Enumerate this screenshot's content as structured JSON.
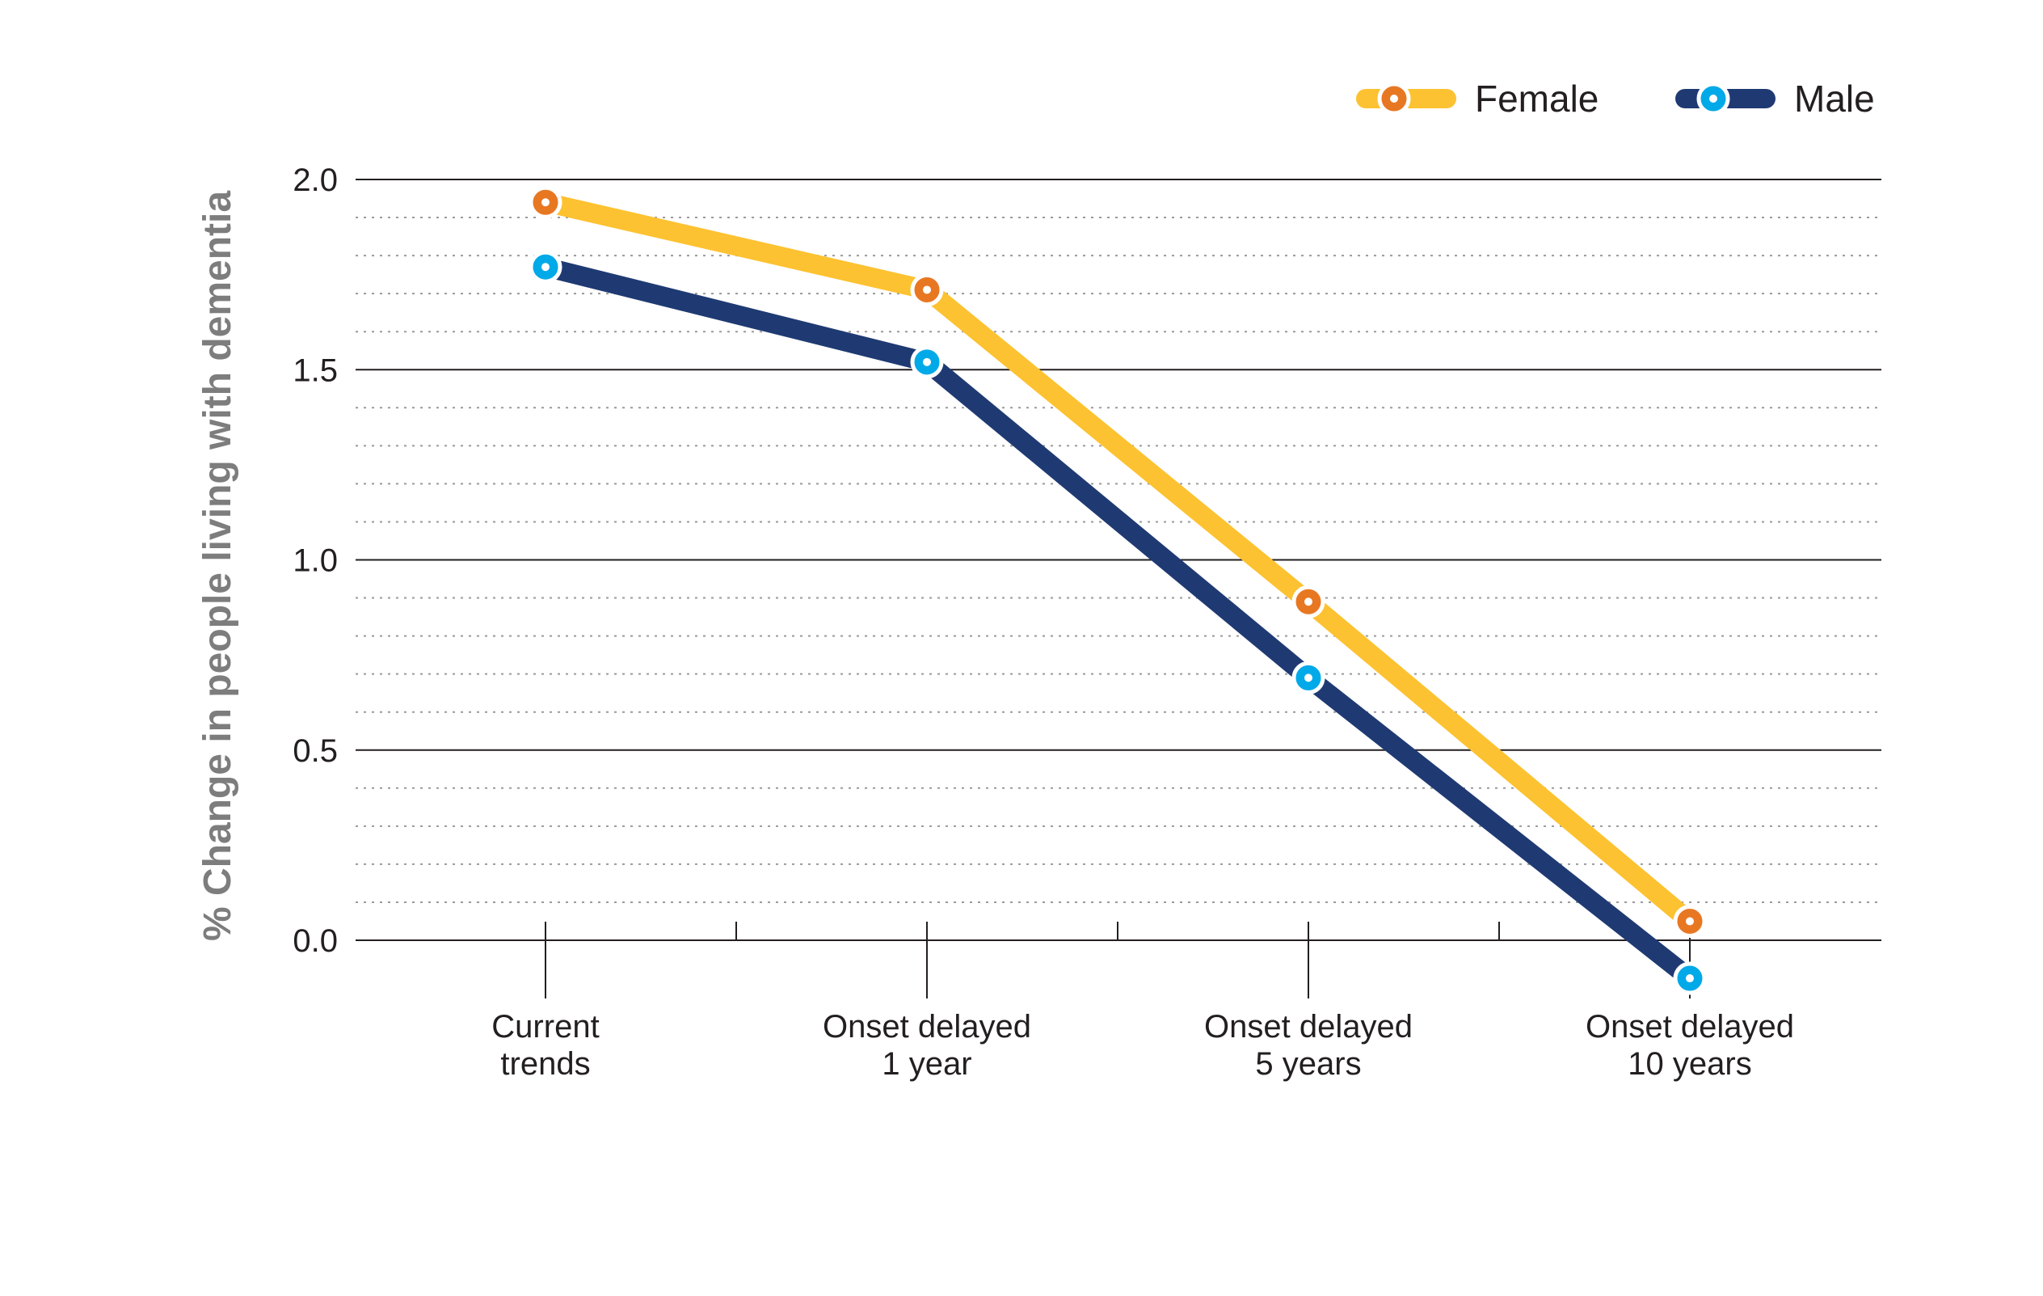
{
  "chart_data": {
    "type": "line",
    "title": "",
    "xlabel": "",
    "ylabel": "% Change in people living with dementia",
    "ylim": [
      0.0,
      2.0
    ],
    "yticks": [
      "0.0",
      "0.5",
      "1.0",
      "1.5",
      "2.0"
    ],
    "minor_grid_step": 0.1,
    "grid": true,
    "legend_position": "top-right",
    "categories": [
      [
        "Current",
        "trends"
      ],
      [
        "Onset delayed",
        "1 year"
      ],
      [
        "Onset delayed",
        "5 years"
      ],
      [
        "Onset delayed",
        "10 years"
      ]
    ],
    "series": [
      {
        "name": "Female",
        "values": [
          1.94,
          1.71,
          0.89,
          0.05
        ],
        "line_color": "#fdc231",
        "marker_color": "#e87722"
      },
      {
        "name": "Male",
        "values": [
          1.77,
          1.52,
          0.69,
          -0.1
        ],
        "line_color": "#1f3a73",
        "marker_color": "#00a9e8"
      }
    ]
  }
}
